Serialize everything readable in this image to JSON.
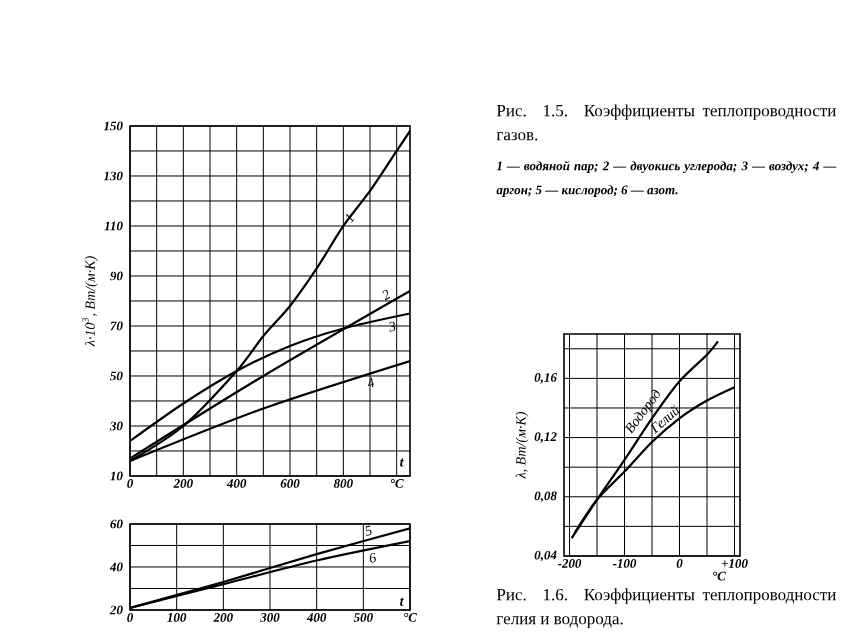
{
  "chart_data": [
    {
      "type": "line",
      "xlabel": "t",
      "ylabel": "λ·10$^{3}$, Вт/(м·К)",
      "grid": true,
      "xlim": [
        0,
        1050
      ],
      "ylim": [
        10,
        150
      ],
      "xticks": [
        0,
        {
          "value": 100,
          "label": null
        },
        200,
        {
          "value": 300,
          "label": null
        },
        400,
        {
          "value": 500,
          "label": null
        },
        600,
        {
          "value": 700,
          "label": null
        },
        800,
        {
          "value": 900,
          "label": null
        },
        {
          "value": 1000,
          "label": "°C"
        }
      ],
      "yticks": [
        10,
        {
          "value": 20,
          "label": null
        },
        30,
        {
          "value": 40,
          "label": null
        },
        50,
        {
          "value": 60,
          "label": null
        },
        70,
        {
          "value": 80,
          "label": null
        },
        90,
        {
          "value": 100,
          "label": null
        },
        110,
        {
          "value": 120,
          "label": null
        },
        130,
        {
          "value": 140,
          "label": null
        },
        150
      ],
      "series": [
        {
          "name": "1",
          "color": "#000000",
          "x": [
            0,
            200,
            400,
            500,
            600,
            700,
            800,
            900,
            1000,
            1050
          ],
          "values": [
            16,
            30,
            52,
            66,
            78,
            93,
            110,
            124,
            140,
            148
          ]
        },
        {
          "name": "2",
          "color": "#000000",
          "x": [
            0,
            500,
            1050
          ],
          "values": [
            17,
            50,
            84
          ]
        },
        {
          "name": "3",
          "color": "#000000",
          "x": [
            0,
            200,
            400,
            600,
            800,
            1050
          ],
          "values": [
            24,
            39,
            52,
            62,
            69,
            75
          ]
        },
        {
          "name": "4",
          "color": "#000000",
          "x": [
            0,
            500,
            1050
          ],
          "values": [
            16,
            37,
            56
          ]
        }
      ]
    },
    {
      "type": "line",
      "xlabel": "t",
      "grid": true,
      "xlim": [
        0,
        600
      ],
      "ylim": [
        20,
        60
      ],
      "xticks": [
        0,
        100,
        200,
        300,
        400,
        500,
        {
          "value": 600,
          "label": "°C"
        }
      ],
      "yticks": [
        20,
        {
          "value": 30,
          "label": null
        },
        40,
        {
          "value": 50,
          "label": null
        },
        60
      ],
      "series": [
        {
          "name": "5",
          "color": "#000000",
          "x": [
            0,
            200,
            400,
            600
          ],
          "values": [
            21,
            33,
            46,
            58
          ]
        },
        {
          "name": "6",
          "color": "#000000",
          "x": [
            0,
            200,
            400,
            600
          ],
          "values": [
            21,
            32,
            43,
            52
          ]
        }
      ]
    },
    {
      "type": "line",
      "title": "Рис. 1.6. Коэффициенты теплопроводности гелия и водорода.",
      "xlabel": "°C",
      "ylabel": "λ, Вт/(м·К)",
      "grid": true,
      "xlim": [
        -210,
        110
      ],
      "ylim": [
        0.04,
        0.19
      ],
      "xticks": [
        -200,
        {
          "value": -150,
          "label": null
        },
        -100,
        {
          "value": -50,
          "label": null
        },
        0,
        {
          "value": 50,
          "label": null
        },
        {
          "value": 100,
          "label": "+100"
        }
      ],
      "yticks": [
        {
          "value": 0.04,
          "label": "0,04"
        },
        {
          "value": 0.06,
          "label": null
        },
        {
          "value": 0.08,
          "label": "0,08"
        },
        {
          "value": 0.1,
          "label": null
        },
        {
          "value": 0.12,
          "label": "0,12"
        },
        {
          "value": 0.14,
          "label": null
        },
        {
          "value": 0.16,
          "label": "0,16"
        },
        {
          "value": 0.18,
          "label": null
        }
      ],
      "series": [
        {
          "name": "Водород",
          "color": "#000000",
          "x": [
            -196,
            -150,
            -100,
            -50,
            0,
            50,
            70
          ],
          "values": [
            0.052,
            0.078,
            0.105,
            0.133,
            0.158,
            0.176,
            0.185
          ]
        },
        {
          "name": "Гелий",
          "color": "#000000",
          "x": [
            -190,
            -150,
            -100,
            -50,
            0,
            50,
            100
          ],
          "values": [
            0.056,
            0.078,
            0.097,
            0.117,
            0.133,
            0.145,
            0.154
          ]
        }
      ]
    },
    {
      "type": "other",
      "title": "Рис. 1.5. Коэффициенты теплопроводности газов.",
      "annotations": [
        "1 — водяной пар; 2 — двуокись углерода; 3 — воздух; 4 — аргон; 5 — кислород; 6 — азот."
      ]
    }
  ]
}
